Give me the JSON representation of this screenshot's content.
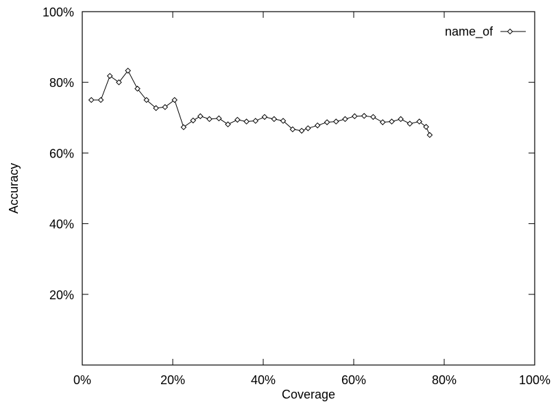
{
  "chart_data": {
    "type": "line",
    "title": "",
    "xlabel": "Coverage",
    "ylabel": "Accuracy",
    "xlim": [
      0,
      100
    ],
    "ylim": [
      0,
      100
    ],
    "x_ticks": [
      0,
      20,
      40,
      60,
      80,
      100
    ],
    "x_tick_labels": [
      "0%",
      "20%",
      "40%",
      "60%",
      "80%",
      "100%"
    ],
    "y_ticks": [
      20,
      40,
      60,
      80,
      100
    ],
    "y_tick_labels": [
      "20%",
      "40%",
      "60%",
      "80%",
      "100%"
    ],
    "grid": false,
    "legend_position": "top-right",
    "series": [
      {
        "name": "name_of",
        "marker": "diamond",
        "color": "#000000",
        "x": [
          2.0,
          4.1,
          6.1,
          8.1,
          10.1,
          12.2,
          14.2,
          16.3,
          18.3,
          20.4,
          22.4,
          24.5,
          26.1,
          28.1,
          30.2,
          32.2,
          34.3,
          36.3,
          38.3,
          40.3,
          42.4,
          44.4,
          46.5,
          48.5,
          49.9,
          52.0,
          54.1,
          56.1,
          58.1,
          60.2,
          62.3,
          64.3,
          66.4,
          68.4,
          70.4,
          72.4,
          74.5,
          76.0,
          76.8
        ],
        "y": [
          75.0,
          75.0,
          81.8,
          80.0,
          83.3,
          78.2,
          75.0,
          72.7,
          73.0,
          75.0,
          67.3,
          69.2,
          70.4,
          69.6,
          69.8,
          68.1,
          69.4,
          68.9,
          69.1,
          70.2,
          69.6,
          69.1,
          66.7,
          66.3,
          67.0,
          67.8,
          68.7,
          68.9,
          69.6,
          70.4,
          70.5,
          70.2,
          68.7,
          68.9,
          69.6,
          68.3,
          68.9,
          67.4,
          65.1
        ]
      }
    ]
  }
}
